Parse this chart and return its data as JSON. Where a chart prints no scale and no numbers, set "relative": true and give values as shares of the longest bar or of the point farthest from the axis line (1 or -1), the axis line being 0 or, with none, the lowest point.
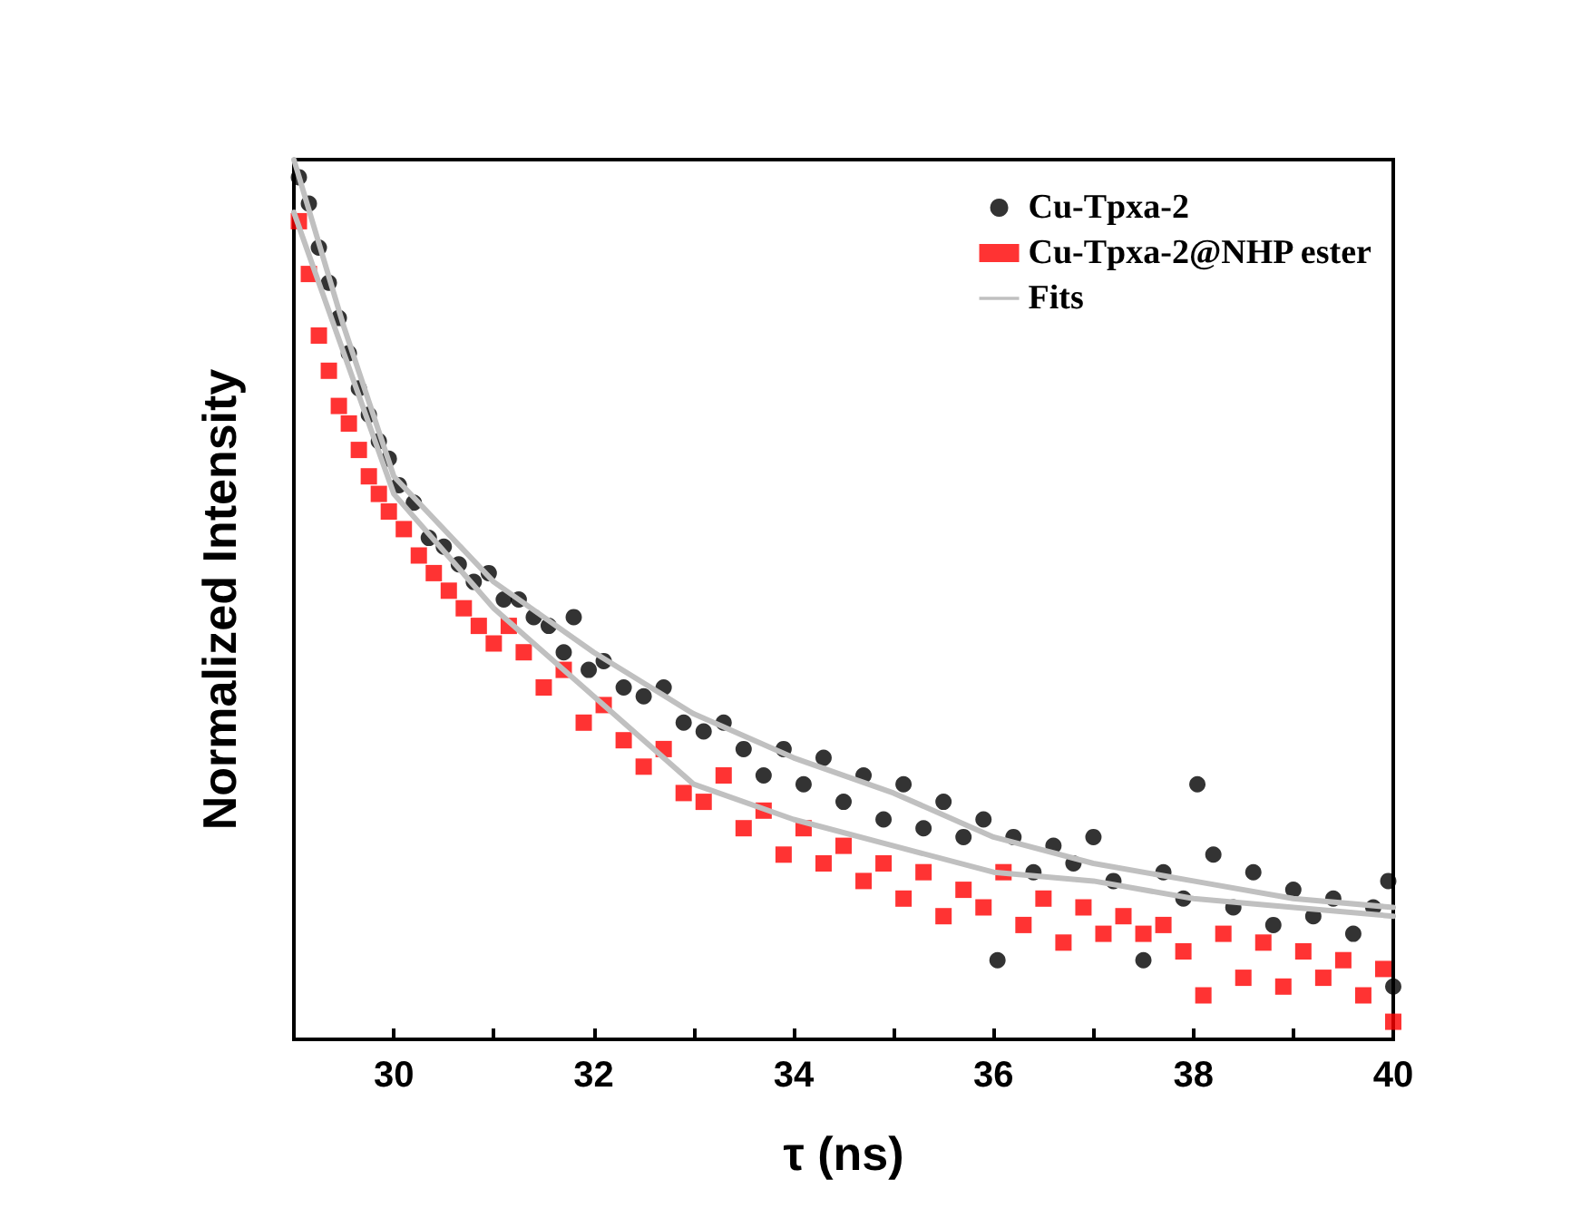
{
  "chart_data": {
    "type": "scatter",
    "xlabel": "τ (ns)",
    "ylabel": "Normalized Intensity",
    "relative": true,
    "legend": "top right",
    "grid": false,
    "xlim": [
      29,
      40
    ],
    "xticks": [
      {
        "value": 29,
        "label": null
      },
      30,
      {
        "value": 31,
        "label": null
      },
      32,
      {
        "value": 33,
        "label": null
      },
      34,
      {
        "value": 35,
        "label": null
      },
      36,
      {
        "value": 37,
        "label": null
      },
      38,
      {
        "value": 39,
        "label": null
      },
      40
    ],
    "series": [
      {
        "name": "Cu-Tpxa-2",
        "marker": "circle",
        "color": "#000000",
        "x": [
          29.05,
          29.15,
          29.25,
          29.35,
          29.45,
          29.55,
          29.65,
          29.75,
          29.85,
          29.95,
          30.05,
          30.2,
          30.35,
          30.5,
          30.65,
          30.8,
          30.95,
          31.1,
          31.25,
          31.4,
          31.55,
          31.7,
          31.8,
          31.95,
          32.1,
          32.3,
          32.5,
          32.7,
          32.9,
          33.1,
          33.3,
          33.5,
          33.7,
          33.9,
          34.1,
          34.3,
          34.5,
          34.7,
          34.9,
          35.1,
          35.3,
          35.5,
          35.7,
          35.9,
          36.04,
          36.2,
          36.4,
          36.6,
          36.8,
          37.0,
          37.2,
          37.5,
          37.7,
          37.9,
          38.04,
          38.2,
          38.4,
          38.6,
          38.8,
          39.0,
          39.2,
          39.4,
          39.6,
          39.8,
          39.95,
          40.0
        ],
        "values": [
          0.98,
          0.95,
          0.9,
          0.86,
          0.82,
          0.78,
          0.74,
          0.71,
          0.68,
          0.66,
          0.63,
          0.61,
          0.57,
          0.56,
          0.54,
          0.52,
          0.53,
          0.5,
          0.5,
          0.48,
          0.47,
          0.44,
          0.48,
          0.42,
          0.43,
          0.4,
          0.39,
          0.4,
          0.36,
          0.35,
          0.36,
          0.33,
          0.3,
          0.33,
          0.29,
          0.32,
          0.27,
          0.3,
          0.25,
          0.29,
          0.24,
          0.27,
          0.23,
          0.25,
          0.09,
          0.23,
          0.19,
          0.22,
          0.2,
          0.23,
          0.18,
          0.09,
          0.19,
          0.16,
          0.29,
          0.21,
          0.15,
          0.19,
          0.13,
          0.17,
          0.14,
          0.16,
          0.12,
          0.15,
          0.18,
          0.06
        ]
      },
      {
        "name": "Cu-Tpxa-2@NHP ester",
        "marker": "square",
        "color": "#ff0000",
        "x": [
          29.05,
          29.15,
          29.25,
          29.35,
          29.45,
          29.55,
          29.65,
          29.75,
          29.85,
          29.95,
          30.1,
          30.25,
          30.4,
          30.55,
          30.7,
          30.85,
          31.0,
          31.15,
          31.3,
          31.5,
          31.7,
          31.9,
          32.1,
          32.3,
          32.5,
          32.7,
          32.9,
          33.1,
          33.3,
          33.5,
          33.7,
          33.9,
          34.1,
          34.3,
          34.5,
          34.7,
          34.9,
          35.1,
          35.3,
          35.5,
          35.7,
          35.9,
          36.1,
          36.3,
          36.5,
          36.7,
          36.9,
          37.1,
          37.3,
          37.5,
          37.7,
          37.9,
          38.1,
          38.3,
          38.5,
          38.7,
          38.9,
          39.1,
          39.3,
          39.5,
          39.7,
          39.9,
          40.0
        ],
        "values": [
          0.93,
          0.87,
          0.8,
          0.76,
          0.72,
          0.7,
          0.67,
          0.64,
          0.62,
          0.6,
          0.58,
          0.55,
          0.53,
          0.51,
          0.49,
          0.47,
          0.45,
          0.47,
          0.44,
          0.4,
          0.42,
          0.36,
          0.38,
          0.34,
          0.31,
          0.33,
          0.28,
          0.27,
          0.3,
          0.24,
          0.26,
          0.21,
          0.24,
          0.2,
          0.22,
          0.18,
          0.2,
          0.16,
          0.19,
          0.14,
          0.17,
          0.15,
          0.19,
          0.13,
          0.16,
          0.11,
          0.15,
          0.12,
          0.14,
          0.12,
          0.13,
          0.1,
          0.05,
          0.12,
          0.07,
          0.11,
          0.06,
          0.1,
          0.07,
          0.09,
          0.05,
          0.08,
          0.02
        ]
      },
      {
        "name": "Fits",
        "type": "line",
        "marker": "none",
        "color": "#c0c0c0",
        "x": [
          29,
          29.5,
          30,
          31,
          32,
          33,
          34,
          35,
          36,
          37,
          38,
          39,
          40
        ],
        "values": [
          1.0,
          0.81,
          0.64,
          0.52,
          0.44,
          0.37,
          0.32,
          0.28,
          0.23,
          0.2,
          0.18,
          0.16,
          0.15
        ]
      },
      {
        "type": "line",
        "marker": "none",
        "color": "#c0c0c0",
        "x": [
          29,
          29.5,
          30,
          31,
          32,
          33,
          34,
          35,
          36,
          37,
          38,
          39,
          40
        ],
        "values": [
          0.94,
          0.78,
          0.62,
          0.49,
          0.39,
          0.29,
          0.25,
          0.22,
          0.19,
          0.18,
          0.16,
          0.15,
          0.14
        ]
      }
    ]
  }
}
